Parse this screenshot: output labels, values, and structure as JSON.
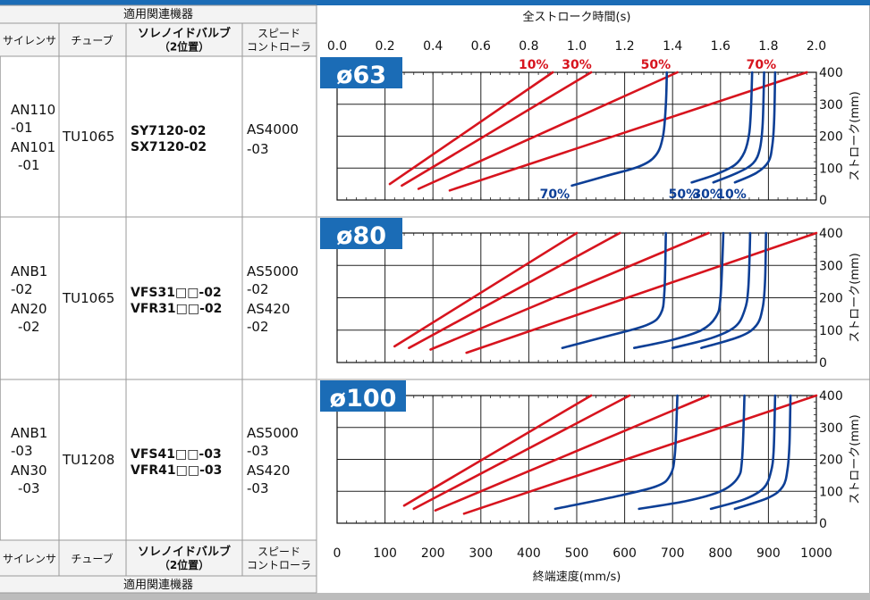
{
  "table": {
    "header_group": "適用関連機器",
    "footer_group": "適用関連機器",
    "col_silencer": "サイレンサ",
    "col_tube": "チューブ",
    "col_valve": [
      "ソレノイドバルブ",
      "（2位置）"
    ],
    "col_speed": [
      "スピード",
      "コントローラ"
    ],
    "rows": [
      {
        "silencer": [
          "AN110",
          "-01",
          "AN101",
          "-01"
        ],
        "tube": "TU1065",
        "valve": [
          "SY7120-02",
          "SX7120-02"
        ],
        "speed": [
          "AS4000",
          "-03"
        ]
      },
      {
        "silencer": [
          "ANB1",
          "-02",
          "AN20",
          "-02"
        ],
        "tube": "TU1065",
        "valve": [
          "VFS31□□-02",
          "VFR31□□-02"
        ],
        "speed": [
          "AS5000",
          "-02",
          "AS420",
          "-02"
        ]
      },
      {
        "silencer": [
          "ANB1",
          "-03",
          "AN30",
          "-03"
        ],
        "tube": "TU1208",
        "valve": [
          "VFS41□□-03",
          "VFR41□□-03"
        ],
        "speed": [
          "AS5000",
          "-03",
          "AS420",
          "-03"
        ]
      }
    ]
  },
  "colors": {
    "red": "#d7141e",
    "blue": "#0d3f96",
    "badge": "#1b6cb6",
    "header_blue": "#1b6cb6"
  },
  "chart_data": {
    "type": "line",
    "top_axis": {
      "label": "全ストローク時間(s)",
      "range": [
        0,
        2.0
      ],
      "ticks": [
        "0.0",
        "0.2",
        "0.4",
        "0.6",
        "0.8",
        "1.0",
        "1.2",
        "1.4",
        "1.6",
        "1.8",
        "2.0"
      ]
    },
    "bottom_axis": {
      "label": "終端速度(mm/s)",
      "range": [
        0,
        1000
      ],
      "ticks": [
        "0",
        "100",
        "200",
        "300",
        "400",
        "500",
        "600",
        "700",
        "800",
        "900",
        "1000"
      ]
    },
    "right_axis": {
      "label": "ストローク(mm)",
      "range": [
        0,
        400
      ],
      "ticks": [
        "0",
        "100",
        "200",
        "300",
        "400"
      ]
    },
    "percent_labels_top": [
      "10%",
      "30%",
      "50%",
      "70%"
    ],
    "percent_labels_bottom": [
      "70%",
      "50%",
      "30%",
      "10%"
    ],
    "panels": [
      {
        "badge": "ø63",
        "red_series": [
          {
            "name": "10%",
            "points": [
              [
                0.22,
                50
              ],
              [
                0.9,
                400
              ]
            ]
          },
          {
            "name": "30%",
            "points": [
              [
                0.27,
                45
              ],
              [
                1.06,
                400
              ]
            ]
          },
          {
            "name": "50%",
            "points": [
              [
                0.34,
                35
              ],
              [
                1.42,
                400
              ]
            ]
          },
          {
            "name": "70%",
            "points": [
              [
                0.47,
                30
              ],
              [
                1.96,
                400
              ]
            ]
          }
        ],
        "blue_series": [
          {
            "name": "70%",
            "points": [
              [
                490,
                45
              ],
              [
                560,
                75
              ],
              [
                630,
                105
              ],
              [
                665,
                140
              ],
              [
                680,
                200
              ],
              [
                686,
                300
              ],
              [
                688,
                400
              ]
            ]
          },
          {
            "name": "50%",
            "points": [
              [
                740,
                55
              ],
              [
                790,
                80
              ],
              [
                830,
                110
              ],
              [
                850,
                150
              ],
              [
                860,
                210
              ],
              [
                864,
                300
              ],
              [
                866,
                400
              ]
            ]
          },
          {
            "name": "30%",
            "points": [
              [
                785,
                55
              ],
              [
                835,
                85
              ],
              [
                868,
                115
              ],
              [
                882,
                160
              ],
              [
                888,
                240
              ],
              [
                891,
                400
              ]
            ]
          },
          {
            "name": "10%",
            "points": [
              [
                830,
                55
              ],
              [
                875,
                85
              ],
              [
                900,
                120
              ],
              [
                908,
                170
              ],
              [
                912,
                250
              ],
              [
                914,
                400
              ]
            ]
          }
        ]
      },
      {
        "badge": "ø80",
        "red_series": [
          {
            "name": "10%",
            "points": [
              [
                0.24,
                50
              ],
              [
                1.0,
                400
              ]
            ]
          },
          {
            "name": "30%",
            "points": [
              [
                0.3,
                45
              ],
              [
                1.18,
                400
              ]
            ]
          },
          {
            "name": "50%",
            "points": [
              [
                0.39,
                40
              ],
              [
                1.55,
                400
              ]
            ]
          },
          {
            "name": "70%",
            "points": [
              [
                0.54,
                30
              ],
              [
                2.0,
                400
              ]
            ]
          }
        ],
        "blue_series": [
          {
            "name": "70%",
            "points": [
              [
                470,
                45
              ],
              [
                560,
                80
              ],
              [
                645,
                115
              ],
              [
                675,
                150
              ],
              [
                683,
                220
              ],
              [
                686,
                400
              ]
            ]
          },
          {
            "name": "50%",
            "points": [
              [
                620,
                45
              ],
              [
                700,
                70
              ],
              [
                760,
                100
              ],
              [
                790,
                140
              ],
              [
                800,
                200
              ],
              [
                806,
                400
              ]
            ]
          },
          {
            "name": "30%",
            "points": [
              [
                700,
                45
              ],
              [
                780,
                75
              ],
              [
                830,
                110
              ],
              [
                850,
                160
              ],
              [
                858,
                230
              ],
              [
                862,
                400
              ]
            ]
          },
          {
            "name": "10%",
            "points": [
              [
                760,
                45
              ],
              [
                840,
                80
              ],
              [
                875,
                115
              ],
              [
                888,
                170
              ],
              [
                893,
                250
              ],
              [
                895,
                400
              ]
            ]
          }
        ]
      },
      {
        "badge": "ø100",
        "red_series": [
          {
            "name": "10%",
            "points": [
              [
                0.28,
                55
              ],
              [
                1.06,
                400
              ]
            ]
          },
          {
            "name": "30%",
            "points": [
              [
                0.32,
                45
              ],
              [
                1.22,
                400
              ]
            ]
          },
          {
            "name": "50%",
            "points": [
              [
                0.41,
                40
              ],
              [
                1.55,
                400
              ]
            ]
          },
          {
            "name": "70%",
            "points": [
              [
                0.53,
                30
              ],
              [
                2.0,
                400
              ]
            ]
          }
        ],
        "blue_series": [
          {
            "name": "70%",
            "points": [
              [
                455,
                45
              ],
              [
                570,
                80
              ],
              [
                665,
                115
              ],
              [
                695,
                150
              ],
              [
                705,
                220
              ],
              [
                710,
                400
              ]
            ]
          },
          {
            "name": "50%",
            "points": [
              [
                630,
                45
              ],
              [
                730,
                70
              ],
              [
                800,
                100
              ],
              [
                835,
                140
              ],
              [
                845,
                200
              ],
              [
                850,
                400
              ]
            ]
          },
          {
            "name": "30%",
            "points": [
              [
                780,
                45
              ],
              [
                850,
                75
              ],
              [
                890,
                110
              ],
              [
                905,
                160
              ],
              [
                911,
                230
              ],
              [
                914,
                400
              ]
            ]
          },
          {
            "name": "10%",
            "points": [
              [
                830,
                45
              ],
              [
                900,
                80
              ],
              [
                930,
                115
              ],
              [
                940,
                170
              ],
              [
                944,
                250
              ],
              [
                946,
                400
              ]
            ]
          }
        ]
      }
    ]
  }
}
